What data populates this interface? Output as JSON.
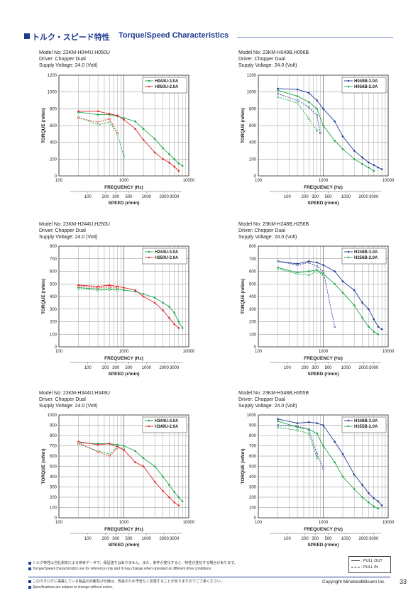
{
  "header": {
    "title_jp": "トルク・スピード特性",
    "title_en": "Torque/Speed Characteristics"
  },
  "colors": {
    "accent": "#1f3a93",
    "green": "#1aa64a",
    "red": "#e0282a",
    "blue": "#1f3a93",
    "grid": "#555555"
  },
  "chart_data": [
    {
      "type": "line",
      "model": "Model No: 23KM-H044U,H050U",
      "driver": "Driver: Chopper Dual",
      "supply": "Supply Voltage: 24.0 (Volt)",
      "xlabel": "FREQUENCY (Hz)",
      "ylabel": "TORQUE (mNm)",
      "x2label": "SPEED (r/min)",
      "xscale": "log",
      "xlim": [
        100,
        10000
      ],
      "ylim": [
        0,
        1200
      ],
      "yticks": [
        "0",
        "200",
        "400",
        "600",
        "800",
        "1000",
        "1200"
      ],
      "xticks": [
        "100",
        "1000",
        "10000"
      ],
      "speedticks": [
        "100",
        "200",
        "300",
        "500",
        "1000",
        "2000",
        "3000"
      ],
      "legend": "top-right",
      "series": [
        {
          "name": "H044U-3.0A",
          "color": "green",
          "style": "solid",
          "x": [
            200,
            400,
            600,
            800,
            1000,
            1500,
            2000,
            3000,
            4000,
            5000,
            6000,
            7000,
            8000
          ],
          "values": [
            760,
            730,
            730,
            710,
            690,
            650,
            560,
            440,
            330,
            260,
            200,
            150,
            120
          ]
        },
        {
          "name": "H044U-3.0A",
          "color": "green",
          "style": "dashed",
          "x": [
            200,
            400,
            600,
            800,
            1000
          ],
          "values": [
            700,
            610,
            640,
            500,
            230
          ]
        },
        {
          "name": "H050U-2.0A",
          "color": "red",
          "style": "solid",
          "x": [
            200,
            400,
            600,
            800,
            1000,
            1500,
            2000,
            3000,
            4000,
            5000,
            6000,
            7000
          ],
          "values": [
            770,
            770,
            740,
            720,
            670,
            560,
            430,
            280,
            200,
            160,
            110,
            60
          ]
        },
        {
          "name": "H050U-2.0A",
          "color": "red",
          "style": "dashed",
          "x": [
            200,
            400,
            600,
            800
          ],
          "values": [
            690,
            640,
            680,
            510
          ]
        }
      ]
    },
    {
      "type": "line",
      "model": "Model No: 23KM-H049B,H056B",
      "driver": "Driver: Chopper Dual",
      "supply": "Supply Voltage: 24.0 (Volt)",
      "xlabel": "FREQUENCY (Hz)",
      "ylabel": "TORQUE (mNm)",
      "x2label": "SPEED (r/min)",
      "xscale": "log",
      "xlim": [
        100,
        10000
      ],
      "ylim": [
        0,
        1200
      ],
      "yticks": [
        "0",
        "200",
        "400",
        "600",
        "800",
        "1000",
        "1200"
      ],
      "xticks": [
        "100",
        "1000",
        "10000"
      ],
      "speedticks": [
        "100",
        "200",
        "300",
        "500",
        "1000",
        "2000",
        "3000"
      ],
      "legend": "top-right",
      "series": [
        {
          "name": "H049B-3.0A",
          "color": "blue",
          "style": "solid",
          "x": [
            200,
            400,
            600,
            800,
            1000,
            1500,
            2000,
            3000,
            4000,
            5000,
            6000,
            7000,
            8000
          ],
          "values": [
            1040,
            1030,
            990,
            900,
            800,
            650,
            470,
            300,
            220,
            160,
            130,
            100,
            80
          ]
        },
        {
          "name": "H049B-3.0A",
          "color": "blue",
          "style": "dashed",
          "x": [
            200,
            400,
            600,
            800,
            900
          ],
          "values": [
            980,
            900,
            820,
            720,
            510
          ]
        },
        {
          "name": "H056B-2.0A",
          "color": "green",
          "style": "solid",
          "x": [
            200,
            400,
            600,
            800,
            1000,
            1500,
            2000,
            3000,
            4000,
            5000,
            6000
          ],
          "values": [
            1020,
            950,
            880,
            800,
            600,
            420,
            320,
            200,
            140,
            100,
            60
          ]
        },
        {
          "name": "H056B-2.0A",
          "color": "green",
          "style": "dashed",
          "x": [
            200,
            400,
            600,
            800
          ],
          "values": [
            940,
            870,
            680,
            540
          ]
        }
      ]
    },
    {
      "type": "line",
      "model": "Model No: 23KM-H244U,H250U",
      "driver": "Driver: Chopper Dual",
      "supply": "Supply Voltage: 24.0 (Volt)",
      "xlabel": "FREQUENCY (Hz)",
      "ylabel": "TORQUE (mNm)",
      "x2label": "SPEED (r/min)",
      "xscale": "log",
      "xlim": [
        100,
        10000
      ],
      "ylim": [
        0,
        800
      ],
      "yticks": [
        "0",
        "100",
        "200",
        "300",
        "400",
        "500",
        "600",
        "700",
        "800"
      ],
      "xticks": [
        "100",
        "1000",
        "10000"
      ],
      "speedticks": [
        "100",
        "200",
        "300",
        "500",
        "1000",
        "2000",
        "3000"
      ],
      "legend": "top-right",
      "series": [
        {
          "name": "H244U-3.0A",
          "color": "green",
          "style": "solid",
          "x": [
            200,
            400,
            600,
            800,
            1000,
            1500,
            2000,
            3000,
            4000,
            5000,
            6000,
            7000,
            8000
          ],
          "values": [
            470,
            460,
            460,
            460,
            450,
            440,
            420,
            390,
            350,
            320,
            270,
            200,
            150
          ]
        },
        {
          "name": "H244U-3.0A",
          "color": "green",
          "style": "dashed",
          "x": [
            200,
            400,
            600,
            800
          ],
          "values": [
            460,
            450,
            455,
            450
          ]
        },
        {
          "name": "H250U-2.0A",
          "color": "red",
          "style": "solid",
          "x": [
            200,
            400,
            600,
            800,
            1000,
            1500,
            2000,
            3000,
            4000,
            5000,
            6000,
            7000
          ],
          "values": [
            490,
            480,
            490,
            480,
            470,
            450,
            400,
            350,
            290,
            230,
            180,
            150
          ]
        },
        {
          "name": "H250U-2.0A",
          "color": "red",
          "style": "dashed",
          "x": [
            200,
            400,
            600,
            800
          ],
          "values": [
            480,
            470,
            475,
            470
          ]
        }
      ]
    },
    {
      "type": "line",
      "model": "Model No: 23KM-H248B,H256B",
      "driver": "Driver: Chopper Dual",
      "supply": "Supply Voltage: 24.0 (Volt)",
      "xlabel": "FREQUENCY (Hz)",
      "ylabel": "TORQUE (mNm)",
      "x2label": "SPEED (r/min)",
      "xscale": "log",
      "xlim": [
        100,
        10000
      ],
      "ylim": [
        0,
        800
      ],
      "yticks": [
        "0",
        "100",
        "200",
        "300",
        "400",
        "500",
        "600",
        "700",
        "800"
      ],
      "xticks": [
        "100",
        "1000",
        "10000"
      ],
      "speedticks": [
        "100",
        "200",
        "300",
        "500",
        "1000",
        "2000",
        "3000"
      ],
      "legend": "top-right",
      "series": [
        {
          "name": "H248B-3.0A",
          "color": "blue",
          "style": "solid",
          "x": [
            200,
            400,
            600,
            800,
            1000,
            1500,
            2000,
            3000,
            4000,
            5000,
            6000,
            7000,
            8000
          ],
          "values": [
            680,
            660,
            680,
            670,
            650,
            600,
            520,
            450,
            350,
            300,
            220,
            160,
            140
          ]
        },
        {
          "name": "H248B-3.0A",
          "color": "blue",
          "style": "dashed",
          "x": [
            200,
            400,
            600,
            800,
            1000,
            1500
          ],
          "values": [
            680,
            650,
            670,
            640,
            600,
            160
          ]
        },
        {
          "name": "H256B-2.0A",
          "color": "green",
          "style": "solid",
          "x": [
            200,
            400,
            600,
            800,
            1000,
            1500,
            2000,
            3000,
            4000,
            5000,
            6000,
            7000
          ],
          "values": [
            630,
            590,
            600,
            610,
            580,
            500,
            430,
            330,
            230,
            160,
            120,
            100
          ]
        },
        {
          "name": "H256B-2.0A",
          "color": "green",
          "style": "dashed",
          "x": [
            200,
            400,
            600,
            800,
            1000
          ],
          "values": [
            620,
            580,
            570,
            600,
            570
          ]
        }
      ]
    },
    {
      "type": "line",
      "model": "Model No: 23KM-H344U,H349U",
      "driver": "Driver: Chopper Dual",
      "supply": "Supply Voltage: 24.0 (Volt)",
      "xlabel": "FREQUENCY (Hz)",
      "ylabel": "TORQUE (mNm)",
      "x2label": "SPEED (r/min)",
      "xscale": "log",
      "xlim": [
        100,
        10000
      ],
      "ylim": [
        0,
        1000
      ],
      "yticks": [
        "0",
        "100",
        "200",
        "300",
        "400",
        "500",
        "600",
        "700",
        "800",
        "900",
        "1000"
      ],
      "xticks": [
        "100",
        "1000",
        "10000"
      ],
      "speedticks": [
        "100",
        "200",
        "300",
        "500",
        "1000",
        "2000",
        "3000"
      ],
      "legend": "top-right",
      "series": [
        {
          "name": "H344U-3.0A",
          "color": "green",
          "style": "solid",
          "x": [
            200,
            400,
            600,
            800,
            1000,
            1500,
            2000,
            3000,
            4000,
            5000,
            6000,
            7000,
            8000
          ],
          "values": [
            730,
            720,
            720,
            710,
            700,
            650,
            580,
            500,
            400,
            320,
            250,
            200,
            160
          ]
        },
        {
          "name": "H344U-3.0A",
          "color": "green",
          "style": "dashed",
          "x": [
            200,
            400,
            600,
            800,
            1000
          ],
          "values": [
            720,
            650,
            620,
            690,
            670
          ]
        },
        {
          "name": "H349U-2.0A",
          "color": "red",
          "style": "solid",
          "x": [
            200,
            400,
            600,
            800,
            1000,
            1500,
            2000,
            3000,
            4000,
            5000,
            6000,
            7000
          ],
          "values": [
            740,
            710,
            720,
            690,
            660,
            540,
            500,
            350,
            260,
            200,
            150,
            120
          ]
        },
        {
          "name": "H349U-2.0A",
          "color": "red",
          "style": "dashed",
          "x": [
            200,
            400,
            600,
            800
          ],
          "values": [
            730,
            640,
            600,
            680
          ]
        }
      ]
    },
    {
      "type": "line",
      "model": "Model No: 23KM-H348B,H355B",
      "driver": "Driver: Chopper Dual",
      "supply": "Supply Voltage: 24.0 (Volt)",
      "xlabel": "FREQUENCY (Hz)",
      "ylabel": "TORQUE (mNm)",
      "x2label": "SPEED (r/min)",
      "xscale": "log",
      "xlim": [
        100,
        10000
      ],
      "ylim": [
        0,
        1000
      ],
      "yticks": [
        "0",
        "100",
        "200",
        "300",
        "400",
        "500",
        "600",
        "700",
        "800",
        "900",
        "1000"
      ],
      "xticks": [
        "100",
        "1000",
        "10000"
      ],
      "speedticks": [
        "100",
        "200",
        "300",
        "500",
        "1000",
        "2000",
        "3000"
      ],
      "legend": "top-right",
      "series": [
        {
          "name": "H348B-3.0A",
          "color": "blue",
          "style": "solid",
          "x": [
            200,
            400,
            600,
            800,
            1000,
            1500,
            2000,
            3000,
            4000,
            5000,
            6000,
            7000,
            8000
          ],
          "values": [
            960,
            920,
            930,
            920,
            900,
            740,
            620,
            420,
            320,
            240,
            190,
            160,
            120
          ]
        },
        {
          "name": "H348B-3.0A",
          "color": "blue",
          "style": "dashed",
          "x": [
            200,
            400,
            600,
            800,
            1000
          ],
          "values": [
            900,
            890,
            860,
            620,
            480
          ]
        },
        {
          "name": "H355B-2.0A",
          "color": "green",
          "style": "solid",
          "x": [
            200,
            400,
            600,
            800,
            1000,
            1500,
            2000,
            3000,
            4000,
            5000,
            6000,
            7000
          ],
          "values": [
            940,
            880,
            860,
            820,
            700,
            540,
            400,
            280,
            200,
            150,
            110,
            90
          ]
        },
        {
          "name": "H355B-2.0A",
          "color": "green",
          "style": "dashed",
          "x": [
            200,
            400,
            600,
            800
          ],
          "values": [
            880,
            850,
            820,
            580
          ]
        }
      ]
    }
  ],
  "footer": {
    "note_jp_1": "トルク特性は当社測定による参考データで、保証値ではありません。また、条件が変化すると、特性が変化する場合があります。",
    "note_en_1": "Torque/Speed characteristics are for reference only and it may change when operated at different drive conditions.",
    "note_jp_2": "このカタログに掲載している製品の外観及び仕様は、改良のため予告なく変更することがありますのでご了承ください。",
    "note_en_2": "Specifications are subject to change without notice.",
    "legend_pullout": ": PULL OUT",
    "legend_pullin": ": PULL IN",
    "copyright": "Copyright MinebeaMitsumi Inc.",
    "page": "33"
  }
}
